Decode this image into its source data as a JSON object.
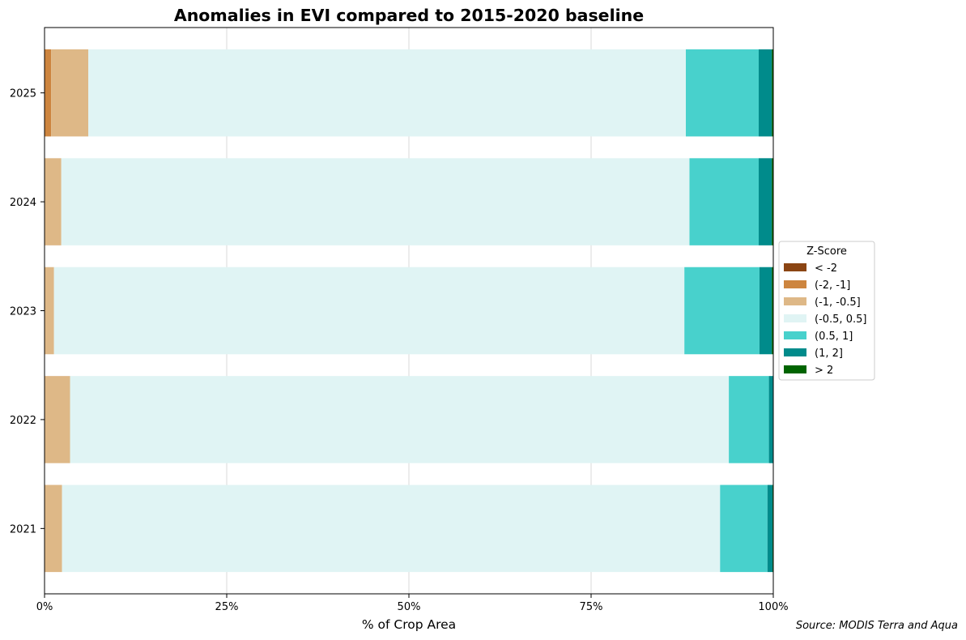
{
  "chart_data": {
    "type": "bar",
    "orientation": "horizontal",
    "stacked": true,
    "title": "Anomalies in EVI compared to 2015-2020 baseline",
    "xlabel": "% of Crop Area",
    "ylabel": "",
    "xlim": [
      0,
      100
    ],
    "x_ticks": [
      "0%",
      "25%",
      "50%",
      "75%",
      "100%"
    ],
    "x_tick_values": [
      0,
      25,
      50,
      75,
      100
    ],
    "categories": [
      "2021",
      "2022",
      "2023",
      "2024",
      "2025"
    ],
    "grid": "vertical",
    "legend_title": "Z-Score",
    "legend_position": "center right, outside plot",
    "series": [
      {
        "name": "< -2",
        "color": "#8B4513",
        "values": [
          0.0,
          0.0,
          0.0,
          0.0,
          0.0
        ]
      },
      {
        "name": "(-2, -1]",
        "color": "#CD853F",
        "values": [
          0.0,
          0.0,
          0.0,
          0.0,
          0.9
        ]
      },
      {
        "name": "(-1, -0.5]",
        "color": "#DEB887",
        "values": [
          2.4,
          3.5,
          1.3,
          2.3,
          5.1
        ]
      },
      {
        "name": "(-0.5, 0.5]",
        "color": "#E0F4F4",
        "values": [
          90.3,
          90.4,
          86.5,
          86.2,
          82.0
        ]
      },
      {
        "name": "(0.5, 1]",
        "color": "#48D1CC",
        "values": [
          6.5,
          5.5,
          10.3,
          9.5,
          10.0
        ]
      },
      {
        "name": "(1, 2]",
        "color": "#008B8B",
        "values": [
          0.7,
          0.6,
          1.7,
          1.8,
          1.8
        ]
      },
      {
        "name": "> 2",
        "color": "#006400",
        "values": [
          0.1,
          0.0,
          0.2,
          0.2,
          0.2
        ]
      }
    ]
  },
  "source_note": "Source: MODIS Terra and Aqua"
}
